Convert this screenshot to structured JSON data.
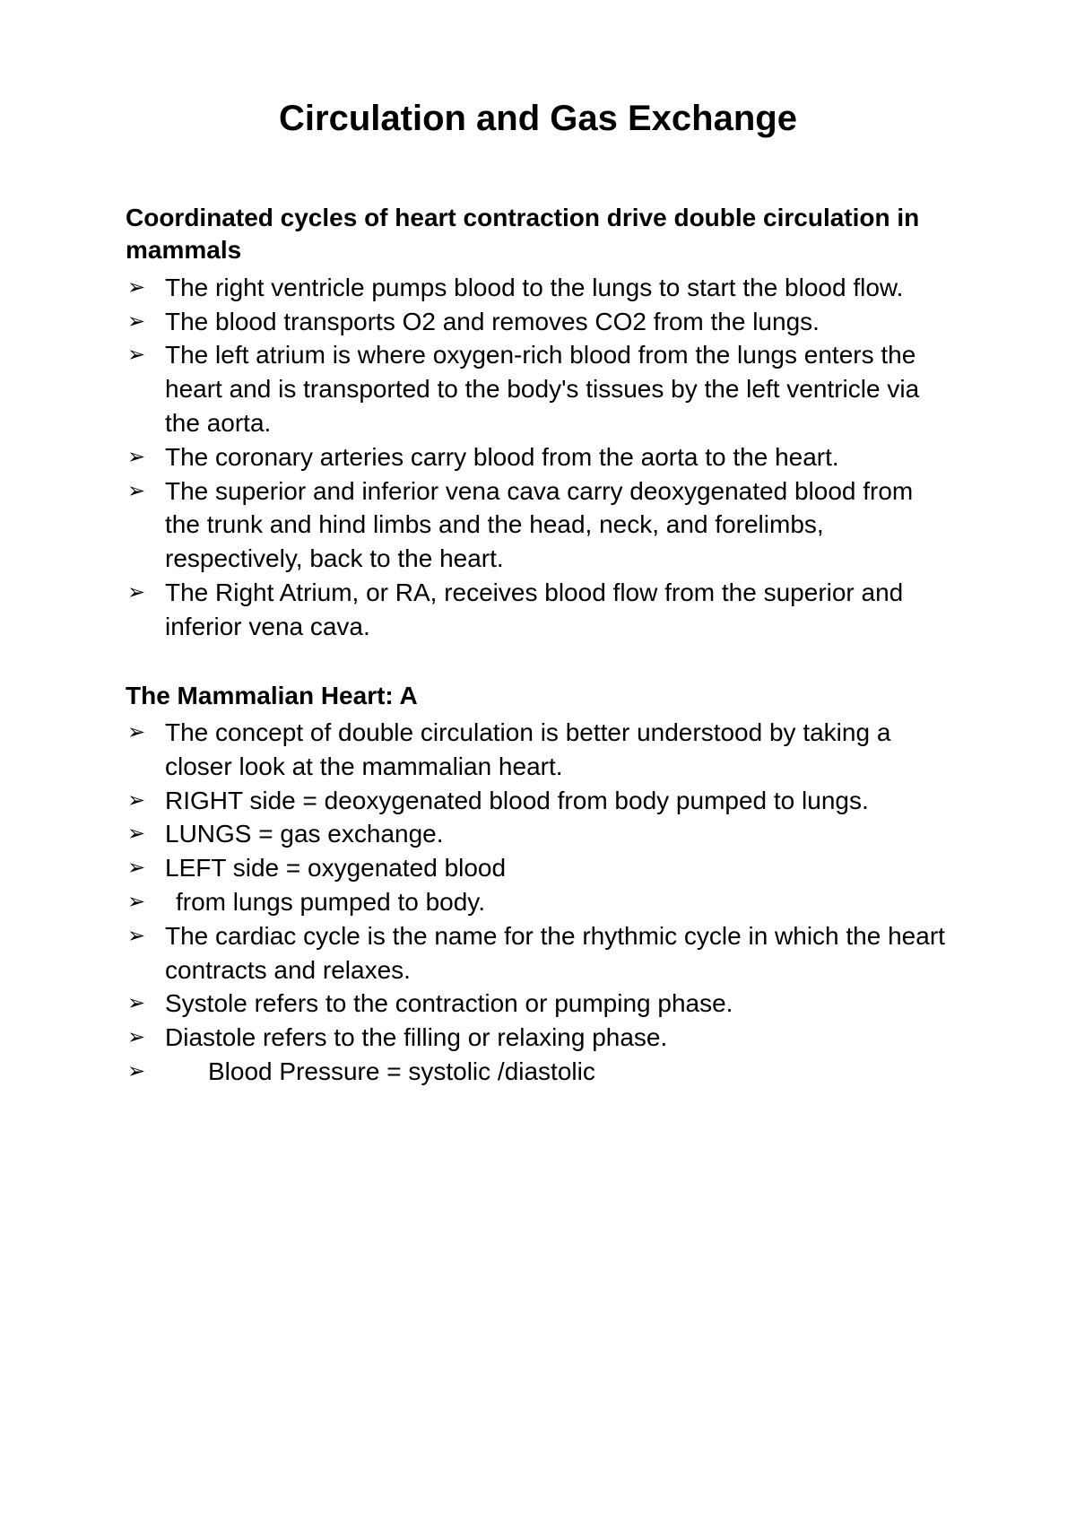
{
  "title": "Circulation and Gas Exchange",
  "sections": [
    {
      "heading": "Coordinated cycles of heart contraction drive double circulation in mammals",
      "items": [
        {
          "text": "The right ventricle pumps blood to the lungs to start the blood flow.",
          "indent": ""
        },
        {
          "text": "The blood transports O2 and removes CO2 from the lungs.",
          "indent": ""
        },
        {
          "text": "The left atrium is where oxygen-rich blood from the lungs enters the heart and is transported to the body's tissues by the left ventricle via the aorta.",
          "indent": ""
        },
        {
          "text": "The coronary arteries carry blood from the aorta to the heart.",
          "indent": ""
        },
        {
          "text": "The superior and inferior vena cava carry deoxygenated blood from the trunk and hind limbs and the head, neck, and forelimbs, respectively, back to the heart.",
          "indent": ""
        },
        {
          "text": "The Right Atrium, or RA, receives blood flow from the superior and inferior vena cava.",
          "indent": ""
        }
      ]
    },
    {
      "heading": "The Mammalian Heart: A",
      "items": [
        {
          "text": "The concept of double circulation is better understood by taking a closer look at the mammalian heart.",
          "indent": ""
        },
        {
          "text": "RIGHT side = deoxygenated blood from body pumped to lungs.",
          "indent": ""
        },
        {
          "text": "LUNGS = gas exchange.",
          "indent": ""
        },
        {
          "text": "LEFT side = oxygenated blood",
          "indent": ""
        },
        {
          "text": " from lungs pumped to body.",
          "indent": "indent-extra"
        },
        {
          "text": "The cardiac cycle is the name for the rhythmic cycle in which the heart contracts and relaxes.",
          "indent": ""
        },
        {
          "text": "Systole refers to the contraction or pumping phase.",
          "indent": ""
        },
        {
          "text": "Diastole refers to the filling or relaxing phase.",
          "indent": ""
        },
        {
          "text": "Blood Pressure = systolic /diastolic",
          "indent": "indent-big"
        }
      ]
    }
  ],
  "bullet_glyph": "➢"
}
